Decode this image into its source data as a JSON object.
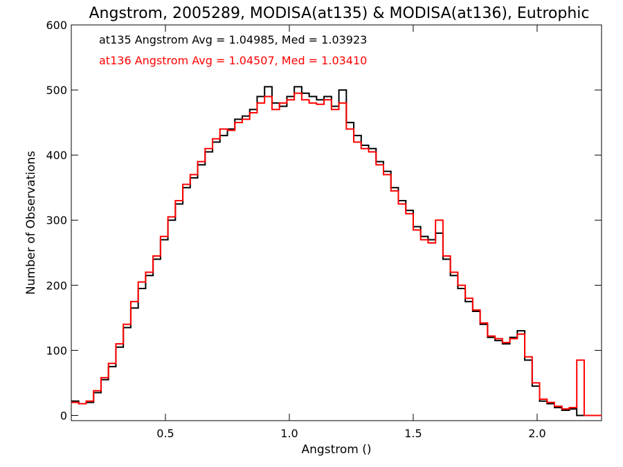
{
  "chart_data": {
    "type": "line",
    "title": "Angstrom, 2005289, MODISA(at135) & MODISA(at136), Eutrophic",
    "xlabel": "Angstrom ()",
    "ylabel": "Number of Observations",
    "xlim": [
      0.12,
      2.26
    ],
    "ylim": [
      -8,
      600
    ],
    "xticks": [
      0.5,
      1.0,
      1.5,
      2.0
    ],
    "xtick_labels": [
      "0.5",
      "1.0",
      "1.5",
      "2.0"
    ],
    "yticks": [
      0,
      100,
      200,
      300,
      400,
      500,
      600
    ],
    "ytick_labels": [
      "0",
      "100",
      "200",
      "300",
      "400",
      "500",
      "600"
    ],
    "step": true,
    "bin_width": 0.01,
    "annotations": [
      {
        "text": "at135 Angstrom Avg = 1.04985, Med = 1.03923",
        "color": "#000000"
      },
      {
        "text": "at136 Angstrom Avg = 1.04507, Med = 1.03410",
        "color": "#ff0000"
      }
    ],
    "series": [
      {
        "name": "at135",
        "color": "#000000",
        "x": [
          0.12,
          0.15,
          0.18,
          0.21,
          0.24,
          0.27,
          0.3,
          0.33,
          0.36,
          0.39,
          0.42,
          0.45,
          0.48,
          0.51,
          0.54,
          0.57,
          0.6,
          0.63,
          0.66,
          0.69,
          0.72,
          0.75,
          0.78,
          0.81,
          0.84,
          0.87,
          0.9,
          0.93,
          0.96,
          0.99,
          1.02,
          1.05,
          1.08,
          1.11,
          1.14,
          1.17,
          1.2,
          1.23,
          1.26,
          1.29,
          1.32,
          1.35,
          1.38,
          1.41,
          1.44,
          1.47,
          1.5,
          1.53,
          1.56,
          1.59,
          1.62,
          1.65,
          1.68,
          1.71,
          1.74,
          1.77,
          1.8,
          1.83,
          1.86,
          1.89,
          1.92,
          1.95,
          1.98,
          2.01,
          2.04,
          2.07,
          2.1,
          2.13,
          2.16,
          2.19,
          2.22,
          2.25
        ],
        "y": [
          22,
          18,
          20,
          35,
          55,
          75,
          105,
          135,
          165,
          195,
          215,
          240,
          270,
          300,
          325,
          350,
          365,
          385,
          405,
          420,
          430,
          440,
          455,
          460,
          470,
          490,
          505,
          480,
          475,
          490,
          505,
          495,
          490,
          485,
          490,
          475,
          500,
          450,
          430,
          415,
          410,
          390,
          375,
          350,
          330,
          315,
          290,
          275,
          270,
          280,
          240,
          215,
          195,
          175,
          160,
          140,
          120,
          115,
          110,
          120,
          130,
          85,
          45,
          22,
          18,
          12,
          8,
          10,
          0,
          0,
          0,
          0
        ]
      },
      {
        "name": "at136",
        "color": "#ff0000",
        "x": [
          0.12,
          0.15,
          0.18,
          0.21,
          0.24,
          0.27,
          0.3,
          0.33,
          0.36,
          0.39,
          0.42,
          0.45,
          0.48,
          0.51,
          0.54,
          0.57,
          0.6,
          0.63,
          0.66,
          0.69,
          0.72,
          0.75,
          0.78,
          0.81,
          0.84,
          0.87,
          0.9,
          0.93,
          0.96,
          0.99,
          1.02,
          1.05,
          1.08,
          1.11,
          1.14,
          1.17,
          1.2,
          1.23,
          1.26,
          1.29,
          1.32,
          1.35,
          1.38,
          1.41,
          1.44,
          1.47,
          1.5,
          1.53,
          1.56,
          1.59,
          1.62,
          1.65,
          1.68,
          1.71,
          1.74,
          1.77,
          1.8,
          1.83,
          1.86,
          1.89,
          1.92,
          1.95,
          1.98,
          2.01,
          2.04,
          2.07,
          2.1,
          2.13,
          2.16,
          2.19,
          2.22,
          2.25
        ],
        "y": [
          20,
          18,
          22,
          38,
          58,
          80,
          110,
          140,
          175,
          205,
          220,
          245,
          275,
          305,
          330,
          355,
          370,
          390,
          410,
          425,
          440,
          438,
          450,
          455,
          465,
          480,
          490,
          470,
          480,
          485,
          495,
          485,
          480,
          478,
          485,
          470,
          480,
          440,
          420,
          410,
          405,
          385,
          370,
          345,
          325,
          310,
          285,
          270,
          265,
          300,
          245,
          220,
          200,
          180,
          162,
          142,
          122,
          118,
          112,
          118,
          125,
          90,
          50,
          25,
          20,
          14,
          10,
          12,
          85,
          0,
          0,
          0
        ]
      }
    ]
  }
}
